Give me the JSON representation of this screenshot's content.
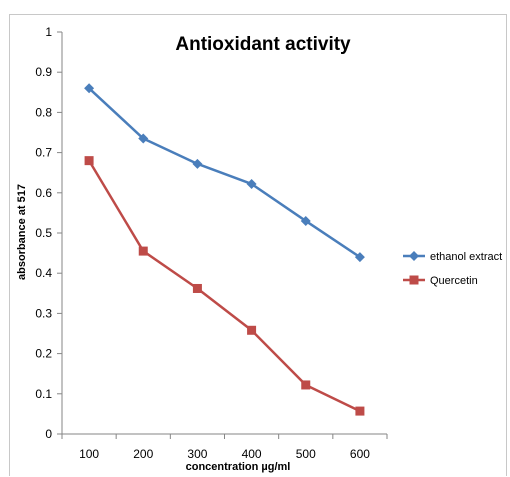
{
  "chart_data": {
    "type": "line",
    "title": "Antioxidant activity",
    "xlabel": "concentration µg/ml",
    "ylabel": "absorbance at 517",
    "categories": [
      "100",
      "200",
      "300",
      "400",
      "500",
      "600"
    ],
    "ylim": [
      0,
      1
    ],
    "yticks": [
      "0",
      "0.1",
      "0.2",
      "0.3",
      "0.4",
      "0.5",
      "0.6",
      "0.7",
      "0.8",
      "0.9",
      "1"
    ],
    "grid": false,
    "legend_position": "right",
    "series": [
      {
        "name": "ethanol extract",
        "color": "#4a7ebb",
        "marker": "diamond",
        "values": [
          0.86,
          0.735,
          0.672,
          0.622,
          0.53,
          0.44
        ]
      },
      {
        "name": "Quercetin",
        "color": "#be4b48",
        "marker": "square",
        "values": [
          0.68,
          0.455,
          0.362,
          0.258,
          0.122,
          0.057
        ]
      }
    ]
  }
}
